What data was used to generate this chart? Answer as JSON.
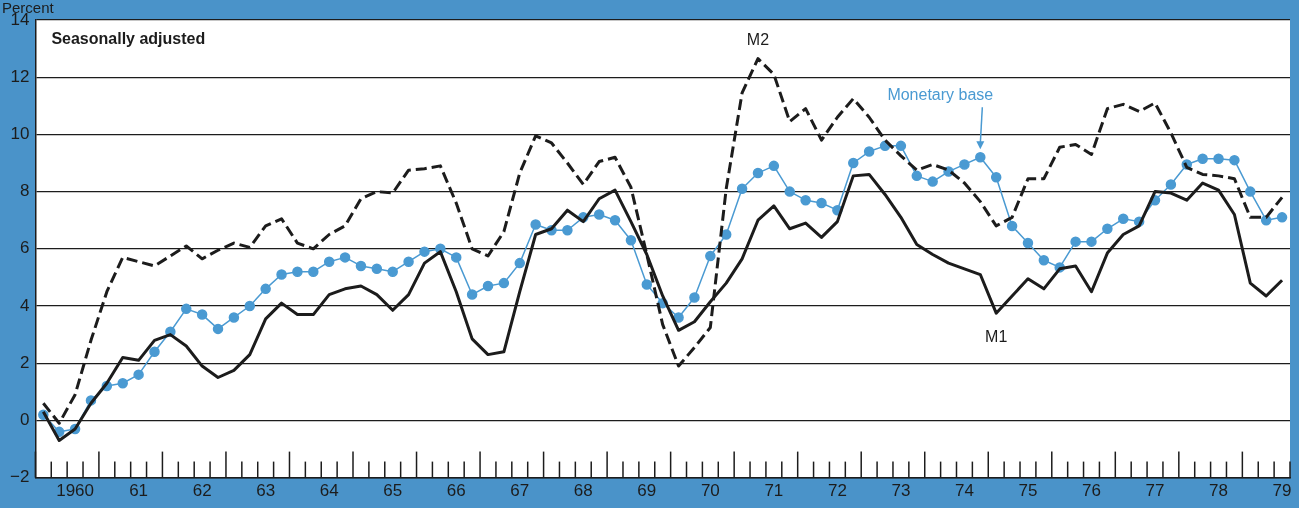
{
  "chart_data": {
    "type": "line",
    "ylabel": "Percent",
    "annotations": [
      "Seasonally adjusted"
    ],
    "categories": [
      null,
      null,
      "1960",
      null,
      null,
      null,
      "61",
      null,
      null,
      null,
      "62",
      null,
      null,
      null,
      "63",
      null,
      null,
      null,
      "64",
      null,
      null,
      null,
      "65",
      null,
      null,
      null,
      "66",
      null,
      null,
      null,
      "67",
      null,
      null,
      null,
      "68",
      null,
      null,
      null,
      "69",
      null,
      null,
      null,
      "70",
      null,
      null,
      null,
      "71",
      null,
      null,
      null,
      "72",
      null,
      null,
      null,
      "73",
      null,
      null,
      null,
      "74",
      null,
      null,
      null,
      "75",
      null,
      null,
      null,
      "76",
      null,
      null,
      null,
      "77",
      null,
      null,
      null,
      "78",
      null,
      null,
      null,
      "79"
    ],
    "series": [
      {
        "name": "M1",
        "color": "#1c1c1c",
        "line_style": "solid",
        "marker": "none",
        "values": [
          0.3,
          -0.7,
          -0.3,
          0.6,
          1.3,
          2.2,
          2.1,
          2.8,
          3.0,
          2.6,
          1.9,
          1.5,
          1.75,
          2.3,
          3.55,
          4.1,
          3.7,
          3.7,
          4.4,
          4.6,
          4.7,
          4.4,
          3.85,
          4.4,
          5.5,
          5.9,
          4.5,
          2.85,
          2.3,
          2.4,
          4.5,
          6.5,
          6.7,
          7.35,
          6.95,
          7.75,
          8.05,
          6.95,
          5.8,
          4.35,
          3.15,
          3.45,
          4.15,
          4.8,
          5.65,
          7.0,
          7.5,
          6.7,
          6.9,
          6.4,
          6.95,
          8.55,
          8.6,
          7.9,
          7.1,
          6.15,
          5.8,
          5.5,
          5.3,
          5.1,
          3.75,
          4.35,
          4.95,
          4.6,
          5.3,
          5.4,
          4.5,
          5.85,
          6.5,
          6.8,
          8.0,
          7.95,
          7.7,
          8.3,
          8.05,
          7.2,
          4.8,
          4.35,
          4.9
        ]
      },
      {
        "name": "M2",
        "color": "#1c1c1c",
        "line_style": "dashed",
        "marker": "none",
        "values": [
          0.6,
          -0.1,
          0.9,
          2.8,
          4.5,
          5.7,
          5.55,
          5.4,
          5.75,
          6.1,
          5.65,
          5.95,
          6.2,
          6.05,
          6.8,
          7.05,
          6.2,
          6.0,
          6.5,
          6.8,
          7.75,
          8.0,
          7.95,
          8.75,
          8.8,
          8.9,
          7.6,
          6.0,
          5.75,
          6.6,
          8.65,
          9.95,
          9.7,
          9.0,
          8.25,
          9.05,
          9.2,
          8.15,
          5.8,
          3.35,
          1.9,
          2.55,
          3.25,
          8.1,
          11.45,
          12.65,
          12.1,
          10.45,
          10.9,
          9.8,
          10.6,
          11.25,
          10.6,
          9.8,
          9.25,
          8.75,
          8.95,
          8.75,
          8.3,
          7.65,
          6.8,
          7.1,
          8.45,
          8.45,
          9.55,
          9.65,
          9.3,
          10.9,
          11.05,
          10.8,
          11.1,
          10.05,
          8.85,
          8.6,
          8.55,
          8.45,
          7.1,
          7.1,
          7.8
        ]
      },
      {
        "name": "Monetary base",
        "color": "#4a9ad2",
        "line_style": "solid",
        "marker": "circle",
        "values": [
          0.2,
          -0.4,
          -0.3,
          0.7,
          1.2,
          1.3,
          1.6,
          2.4,
          3.1,
          3.9,
          3.7,
          3.2,
          3.6,
          4.0,
          4.6,
          5.1,
          5.2,
          5.2,
          5.55,
          5.7,
          5.4,
          5.3,
          5.2,
          5.55,
          5.9,
          6.0,
          5.7,
          4.4,
          4.7,
          4.8,
          5.5,
          6.85,
          6.65,
          6.65,
          7.1,
          7.2,
          7.0,
          6.3,
          4.75,
          4.1,
          3.6,
          4.3,
          5.75,
          6.5,
          8.1,
          8.65,
          8.9,
          8.0,
          7.7,
          7.6,
          7.35,
          9.0,
          9.4,
          9.6,
          9.6,
          8.55,
          8.35,
          8.7,
          8.95,
          9.2,
          8.5,
          6.8,
          6.2,
          5.6,
          5.35,
          6.25,
          6.25,
          6.7,
          7.05,
          6.95,
          7.7,
          8.25,
          8.95,
          9.15,
          9.15,
          9.1,
          8.0,
          7.0,
          7.1
        ]
      }
    ],
    "ylim": [
      -2,
      14
    ],
    "yticks": [
      {
        "value": -2,
        "label": "−2"
      },
      0,
      2,
      4,
      6,
      8,
      10,
      12,
      14
    ],
    "grid": "y",
    "legend": false
  }
}
